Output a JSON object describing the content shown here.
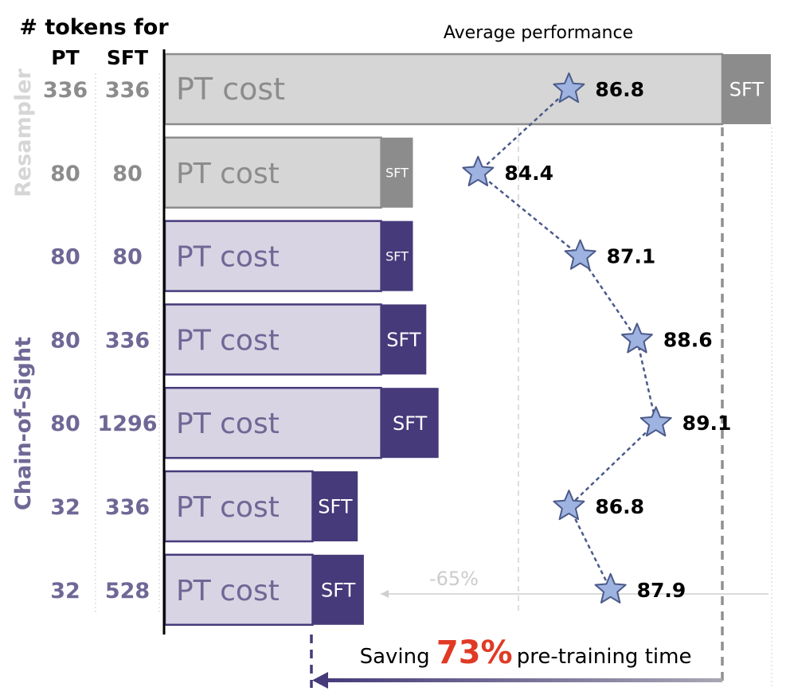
{
  "chart_data": {
    "type": "bar",
    "orientation": "horizontal-stacked",
    "header": {
      "title": "# tokens for",
      "pt_label": "PT",
      "sft_label": "SFT"
    },
    "axis_label": "Average performance",
    "groups": [
      {
        "label": "Resampler",
        "rows": [
          0,
          1
        ]
      },
      {
        "label": "Chain-of-Sight",
        "rows": [
          2,
          3,
          4,
          5,
          6
        ]
      }
    ],
    "segment_labels": {
      "pt": "PT cost",
      "sft": "SFT"
    },
    "rows": [
      {
        "pt_tokens": "336",
        "sft_tokens": "336",
        "group": "Resampler",
        "pt_cost": 100.0,
        "sft_cost": 8.7,
        "performance": 86.8
      },
      {
        "pt_tokens": "80",
        "sft_tokens": "80",
        "group": "Resampler",
        "pt_cost": 38.8,
        "sft_cost": 5.7,
        "performance": 84.4
      },
      {
        "pt_tokens": "80",
        "sft_tokens": "80",
        "group": "Chain-of-Sight",
        "pt_cost": 38.8,
        "sft_cost": 5.7,
        "performance": 87.1
      },
      {
        "pt_tokens": "80",
        "sft_tokens": "336",
        "group": "Chain-of-Sight",
        "pt_cost": 38.8,
        "sft_cost": 8.1,
        "performance": 88.6
      },
      {
        "pt_tokens": "80",
        "sft_tokens": "1296",
        "group": "Chain-of-Sight",
        "pt_cost": 38.8,
        "sft_cost": 10.3,
        "performance": 89.1
      },
      {
        "pt_tokens": "32",
        "sft_tokens": "336",
        "group": "Chain-of-Sight",
        "pt_cost": 26.5,
        "sft_cost": 8.1,
        "performance": 86.8
      },
      {
        "pt_tokens": "32",
        "sft_tokens": "528",
        "group": "Chain-of-Sight",
        "pt_cost": 26.5,
        "sft_cost": 9.2,
        "performance": 87.9
      }
    ],
    "performance_range": [
      80.5,
      92.6
    ],
    "annotations": {
      "reduction_label": "-65%",
      "saving_prefix": "Saving ",
      "saving_value": "73%",
      "saving_suffix": " pre-training time"
    },
    "colors": {
      "resampler_pt": "#d6d6d6",
      "resampler_sft": "#8c8c8c",
      "resampler_text": "#8c8c8c",
      "cos_pt": "#d8d4e3",
      "cos_sft": "#463a7a",
      "cos_text": "#6f6896",
      "star_fill": "#9eb3e0",
      "star_stroke": "#4b5a8a",
      "highlight": "#e03a25"
    }
  }
}
